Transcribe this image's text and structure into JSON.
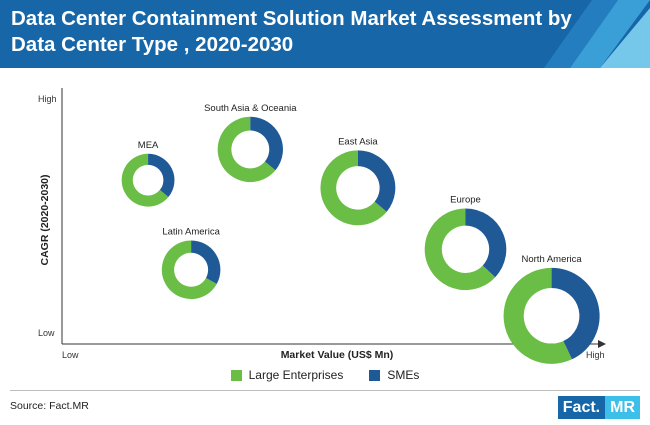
{
  "header": {
    "title": "Data Center Containment Solution Market Assessment by Data Center Type , 2020-2030"
  },
  "colors": {
    "banner": "#1666a8",
    "large_enterprises": "#6abd45",
    "smes": "#1f5a96"
  },
  "chart_data": {
    "type": "bubble-donut",
    "title": "Data Center Containment Solution Market Assessment by Data Center Type , 2020-2030",
    "xlabel": "Market Value (US$ Mn)",
    "ylabel": "CAGR (2020-2030)",
    "x_ticks": [
      "Low",
      "High"
    ],
    "y_ticks": [
      "High",
      "Low"
    ],
    "grid": false,
    "legend_position": "bottom",
    "series": [
      {
        "name": "Large Enterprises",
        "color": "#6abd45"
      },
      {
        "name": "SMEs",
        "color": "#1f5a96"
      }
    ],
    "points": [
      {
        "label": "MEA",
        "x": 0.16,
        "y": 0.64,
        "size": 0.55,
        "large_enterprises_share": 0.64,
        "smes_share": 0.36
      },
      {
        "label": "Latin America",
        "x": 0.24,
        "y": 0.29,
        "size": 0.61,
        "large_enterprises_share": 0.67,
        "smes_share": 0.33
      },
      {
        "label": "South Asia & Oceania",
        "x": 0.35,
        "y": 0.76,
        "size": 0.68,
        "large_enterprises_share": 0.64,
        "smes_share": 0.36
      },
      {
        "label": "East Asia",
        "x": 0.55,
        "y": 0.61,
        "size": 0.78,
        "large_enterprises_share": 0.64,
        "smes_share": 0.36
      },
      {
        "label": "Europe",
        "x": 0.75,
        "y": 0.37,
        "size": 0.85,
        "large_enterprises_share": 0.63,
        "smes_share": 0.37
      },
      {
        "label": "North America",
        "x": 0.91,
        "y": 0.11,
        "size": 1.0,
        "large_enterprises_share": 0.57,
        "smes_share": 0.43
      }
    ]
  },
  "legend": {
    "large_enterprises": "Large Enterprises",
    "smes": "SMEs"
  },
  "footer": {
    "source": "Source: Fact.MR",
    "logo_left": "Fact.",
    "logo_right": "MR"
  }
}
